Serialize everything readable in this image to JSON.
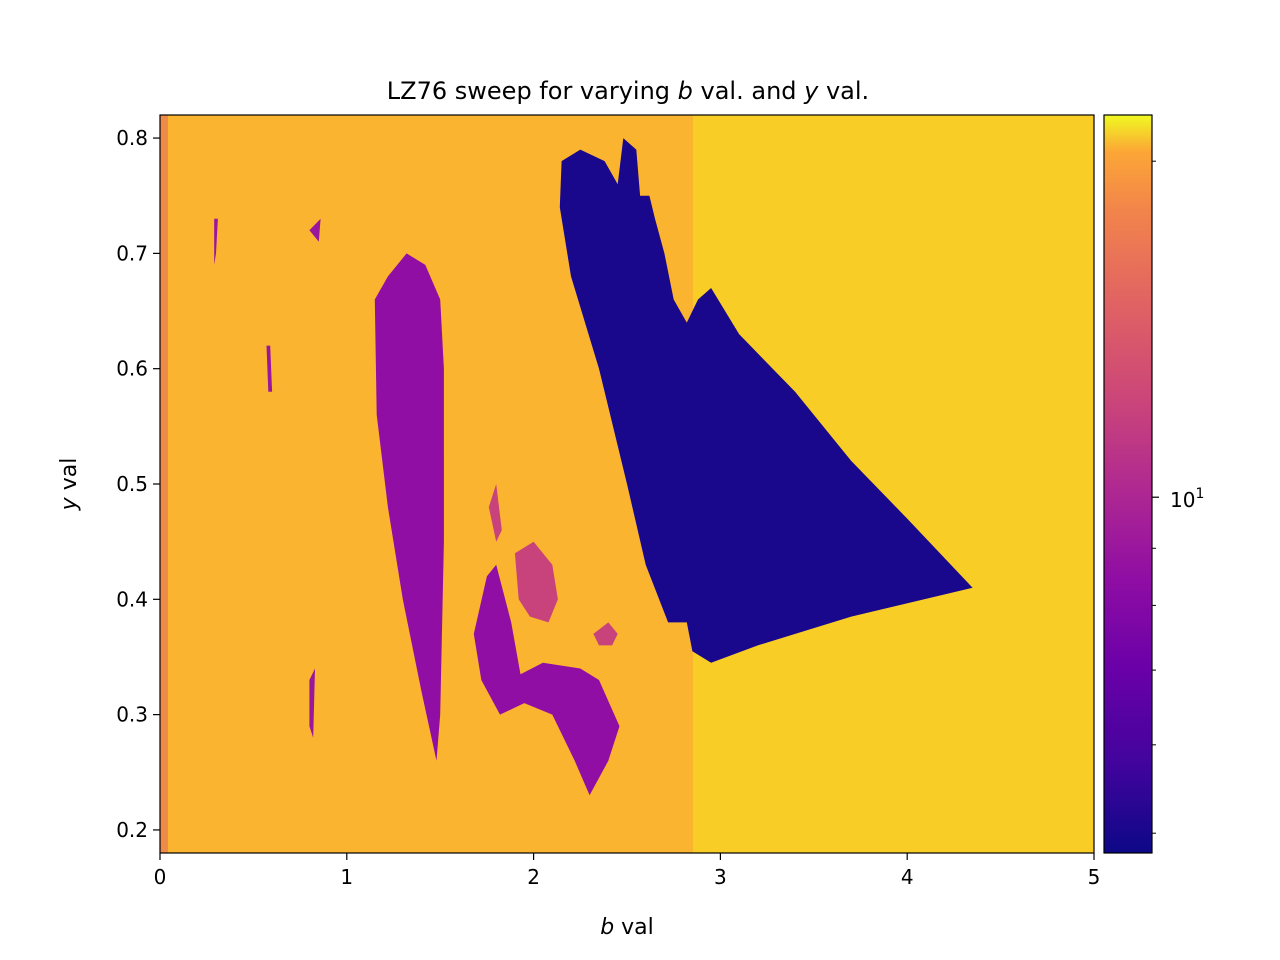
{
  "chart_data": {
    "type": "heatmap",
    "title_parts": [
      "LZ76 sweep for varying ",
      "b",
      " val. and ",
      "y",
      " val."
    ],
    "xlabel_parts": [
      "b",
      " val"
    ],
    "ylabel_parts": [
      "y",
      " val"
    ],
    "xlim": [
      0,
      5
    ],
    "ylim": [
      0.18,
      0.82
    ],
    "x_ticks": [
      0,
      1,
      2,
      3,
      4,
      5
    ],
    "x_tick_labels": [
      "0",
      "1",
      "2",
      "3",
      "4",
      "5"
    ],
    "y_ticks": [
      0.2,
      0.3,
      0.4,
      0.5,
      0.6,
      0.7,
      0.8
    ],
    "y_tick_labels": [
      "0.2",
      "0.3",
      "0.4",
      "0.5",
      "0.6",
      "0.7",
      "0.8"
    ],
    "colormap": "plasma",
    "colorbar": {
      "scale": "log",
      "range": [
        4.8,
        22
      ],
      "major_tick_value": 10,
      "major_tick_label_base": "10",
      "major_tick_label_exp": "1",
      "minor_ticks": [
        5,
        6,
        7,
        8,
        9,
        20
      ]
    },
    "background_value": 18,
    "regions": [
      {
        "name": "large-dark-lobe",
        "value": 5,
        "vertices": [
          [
            2.15,
            0.78
          ],
          [
            2.25,
            0.79
          ],
          [
            2.38,
            0.78
          ],
          [
            2.45,
            0.76
          ],
          [
            2.48,
            0.8
          ],
          [
            2.55,
            0.79
          ],
          [
            2.57,
            0.75
          ],
          [
            2.62,
            0.75
          ],
          [
            2.65,
            0.73
          ],
          [
            2.7,
            0.7
          ],
          [
            2.75,
            0.66
          ],
          [
            2.82,
            0.64
          ],
          [
            2.88,
            0.66
          ],
          [
            2.95,
            0.67
          ],
          [
            3.1,
            0.63
          ],
          [
            3.4,
            0.58
          ],
          [
            3.7,
            0.52
          ],
          [
            4.0,
            0.47
          ],
          [
            4.35,
            0.41
          ],
          [
            3.7,
            0.385
          ],
          [
            3.2,
            0.36
          ],
          [
            2.95,
            0.345
          ],
          [
            2.85,
            0.355
          ],
          [
            2.82,
            0.38
          ],
          [
            2.72,
            0.38
          ],
          [
            2.6,
            0.43
          ],
          [
            2.5,
            0.5
          ],
          [
            2.35,
            0.6
          ],
          [
            2.2,
            0.68
          ],
          [
            2.14,
            0.74
          ]
        ]
      },
      {
        "name": "purple-vertical-lobe",
        "value": 8.5,
        "vertices": [
          [
            1.15,
            0.66
          ],
          [
            1.22,
            0.68
          ],
          [
            1.32,
            0.7
          ],
          [
            1.42,
            0.69
          ],
          [
            1.5,
            0.66
          ],
          [
            1.52,
            0.6
          ],
          [
            1.52,
            0.45
          ],
          [
            1.5,
            0.3
          ],
          [
            1.48,
            0.26
          ],
          [
            1.4,
            0.32
          ],
          [
            1.3,
            0.4
          ],
          [
            1.22,
            0.48
          ],
          [
            1.16,
            0.56
          ]
        ]
      },
      {
        "name": "purple-lower-wedge",
        "value": 8.5,
        "vertices": [
          [
            1.68,
            0.37
          ],
          [
            1.75,
            0.42
          ],
          [
            1.8,
            0.43
          ],
          [
            1.88,
            0.38
          ],
          [
            1.93,
            0.335
          ],
          [
            2.05,
            0.345
          ],
          [
            2.25,
            0.34
          ],
          [
            2.35,
            0.33
          ],
          [
            2.46,
            0.29
          ],
          [
            2.4,
            0.26
          ],
          [
            2.3,
            0.23
          ],
          [
            2.22,
            0.26
          ],
          [
            2.1,
            0.3
          ],
          [
            1.95,
            0.31
          ],
          [
            1.82,
            0.3
          ],
          [
            1.72,
            0.33
          ]
        ]
      },
      {
        "name": "magenta-patch-center",
        "value": 12,
        "vertices": [
          [
            1.9,
            0.44
          ],
          [
            2.0,
            0.45
          ],
          [
            2.1,
            0.43
          ],
          [
            2.13,
            0.4
          ],
          [
            2.08,
            0.38
          ],
          [
            1.98,
            0.385
          ],
          [
            1.92,
            0.4
          ]
        ]
      },
      {
        "name": "magenta-patch-right",
        "value": 12,
        "vertices": [
          [
            2.32,
            0.37
          ],
          [
            2.4,
            0.38
          ],
          [
            2.45,
            0.37
          ],
          [
            2.42,
            0.36
          ],
          [
            2.35,
            0.36
          ]
        ]
      },
      {
        "name": "magenta-patch-high",
        "value": 12,
        "vertices": [
          [
            1.76,
            0.48
          ],
          [
            1.8,
            0.5
          ],
          [
            1.83,
            0.46
          ],
          [
            1.8,
            0.45
          ]
        ]
      },
      {
        "name": "streak-1",
        "value": 9,
        "vertices": [
          [
            0.29,
            0.73
          ],
          [
            0.31,
            0.73
          ],
          [
            0.3,
            0.7
          ],
          [
            0.29,
            0.69
          ]
        ]
      },
      {
        "name": "streak-2",
        "value": 9,
        "vertices": [
          [
            0.57,
            0.62
          ],
          [
            0.59,
            0.62
          ],
          [
            0.6,
            0.58
          ],
          [
            0.58,
            0.58
          ]
        ]
      },
      {
        "name": "streak-3",
        "value": 9,
        "vertices": [
          [
            0.8,
            0.72
          ],
          [
            0.86,
            0.73
          ],
          [
            0.85,
            0.71
          ]
        ]
      },
      {
        "name": "streak-4",
        "value": 9,
        "vertices": [
          [
            0.8,
            0.33
          ],
          [
            0.83,
            0.34
          ],
          [
            0.82,
            0.28
          ],
          [
            0.8,
            0.29
          ]
        ]
      }
    ]
  }
}
